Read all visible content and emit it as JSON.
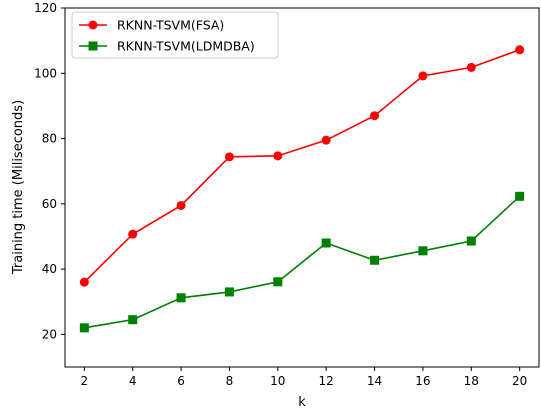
{
  "chart_data": {
    "type": "line",
    "title": "",
    "xlabel": "k",
    "ylabel": "Training time (Miliseconds)",
    "x": [
      2,
      4,
      6,
      8,
      10,
      12,
      14,
      16,
      18,
      20
    ],
    "xlim": [
      1.2,
      20.8
    ],
    "ylim": [
      10,
      120
    ],
    "xticks": [
      "2",
      "4",
      "6",
      "8",
      "10",
      "12",
      "14",
      "16",
      "18",
      "20"
    ],
    "yticks": [
      "20",
      "40",
      "60",
      "80",
      "100",
      "120"
    ],
    "grid": false,
    "legend_position": "top-left",
    "series": [
      {
        "name": "RKNN-TSVM(FSA)",
        "color": "#ff0000",
        "marker": "circle",
        "values": [
          36,
          50.7,
          59.5,
          74.4,
          74.7,
          79.5,
          87,
          99.2,
          101.8,
          107.2
        ]
      },
      {
        "name": "RKNN-TSVM(LDMDBA)",
        "color": "#008000",
        "marker": "square",
        "values": [
          22,
          24.5,
          31.2,
          33,
          36.1,
          48,
          42.7,
          45.6,
          48.6,
          62.3
        ]
      }
    ]
  }
}
